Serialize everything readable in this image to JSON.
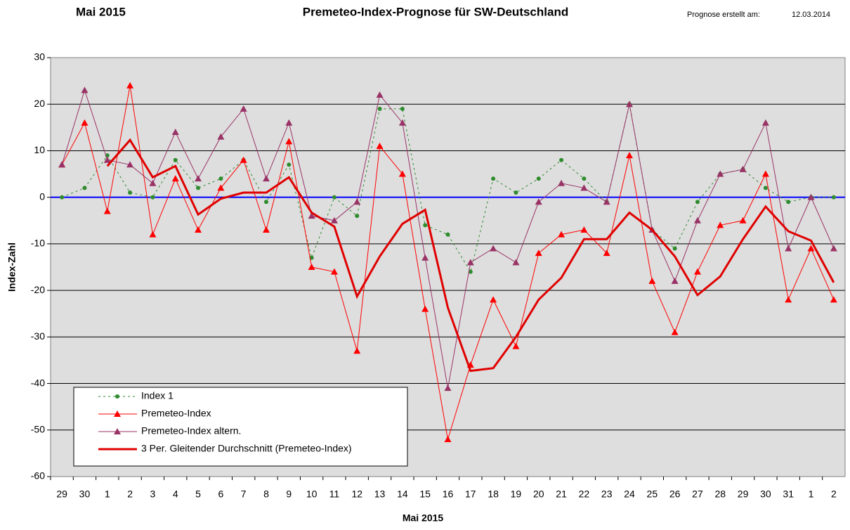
{
  "chart_data": {
    "type": "line",
    "title": "Premeteo-Index-Prognose für SW-Deutschland",
    "header_left": "Mai 2015",
    "header_right_label": "Prognose erstellt am:",
    "header_right_date": "12.03.2014",
    "xlabel": "Mai 2015",
    "ylabel": "Index-Zahl",
    "categories": [
      "29",
      "30",
      "1",
      "2",
      "3",
      "4",
      "5",
      "6",
      "7",
      "8",
      "9",
      "10",
      "11",
      "12",
      "13",
      "14",
      "15",
      "16",
      "17",
      "18",
      "19",
      "20",
      "21",
      "22",
      "23",
      "24",
      "25",
      "26",
      "27",
      "28",
      "29",
      "30",
      "31",
      "1",
      "2"
    ],
    "series": [
      {
        "name": "Index 1",
        "color": "#2e8b2e",
        "dash": true,
        "width": 1,
        "marker": "circle",
        "values": [
          0,
          2,
          9,
          1,
          0,
          8,
          2,
          4,
          8,
          -1,
          7,
          -13,
          0,
          -4,
          19,
          19,
          -6,
          -8,
          -16,
          4,
          1,
          4,
          8,
          4,
          -1,
          20,
          -7,
          -11,
          -1,
          5,
          6,
          2,
          -1,
          0,
          0
        ]
      },
      {
        "name": "Premeteo-Index",
        "color": "#ff0000",
        "dash": false,
        "width": 1,
        "marker": "triangle",
        "values": [
          7,
          16,
          -3,
          24,
          -8,
          4,
          -7,
          2,
          8,
          -7,
          12,
          -15,
          -16,
          -33,
          11,
          5,
          -24,
          -52,
          -36,
          -22,
          -32,
          -12,
          -8,
          -7,
          -12,
          9,
          -18,
          -29,
          -16,
          -6,
          -5,
          5,
          -22,
          -11,
          -22
        ]
      },
      {
        "name": "Premeteo-Index altern.",
        "color": "#993366",
        "dash": false,
        "width": 1,
        "marker": "triangle",
        "values": [
          7,
          23,
          8,
          7,
          3,
          14,
          4,
          13,
          19,
          4,
          16,
          -4,
          -5,
          -1,
          22,
          16,
          -13,
          -41,
          -14,
          -11,
          -14,
          -1,
          3,
          2,
          -1,
          20,
          -7,
          -18,
          -5,
          5,
          6,
          16,
          -11,
          0,
          -11
        ]
      },
      {
        "name": "3 Per. Gleitender Durchschnitt (Premeteo-Index)",
        "color": "#e00000",
        "dash": false,
        "width": 3,
        "marker": "none",
        "values": [
          null,
          null,
          6.7,
          12.3,
          4.3,
          6.7,
          -3.7,
          -0.3,
          1,
          1,
          4.3,
          -3.3,
          -6.3,
          -21.3,
          -12.7,
          -5.7,
          -2.7,
          -23.7,
          -37.3,
          -36.7,
          -30,
          -22,
          -17.3,
          -9,
          -9,
          -3.3,
          -7,
          -12.7,
          -21,
          -17,
          -9,
          -2,
          -7.3,
          -9.3,
          -18.3
        ]
      }
    ],
    "ylim": [
      -60,
      30
    ],
    "yticks": [
      -60,
      -50,
      -40,
      -30,
      -20,
      -10,
      0,
      10,
      20,
      30
    ],
    "grid": true,
    "zero_line_color": "#0000ff",
    "legend": "lower left"
  }
}
